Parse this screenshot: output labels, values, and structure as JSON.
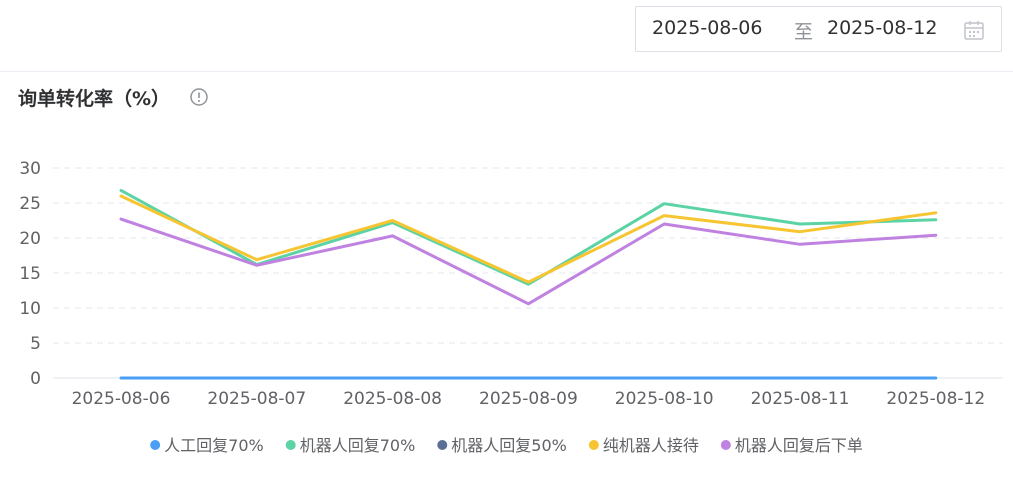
{
  "date_range": {
    "start": "2025-08-06",
    "separator": "至",
    "end": "2025-08-12"
  },
  "chart_data": {
    "type": "line",
    "title": "询单转化率（%）",
    "categories": [
      "2025-08-06",
      "2025-08-07",
      "2025-08-08",
      "2025-08-09",
      "2025-08-10",
      "2025-08-11",
      "2025-08-12"
    ],
    "ylim": [
      0,
      30
    ],
    "yticks": [
      0,
      5,
      10,
      15,
      20,
      25,
      30
    ],
    "grid": "horizontal-dashed",
    "legend": "bottom",
    "series": [
      {
        "name": "人工回复70%",
        "color": "#4a9ff5",
        "values": [
          0,
          0,
          0,
          0,
          0,
          0,
          0
        ]
      },
      {
        "name": "机器人回复70%",
        "color": "#5cd3a5",
        "values": [
          26.8,
          16.2,
          22.2,
          13.4,
          24.9,
          22.0,
          22.6
        ]
      },
      {
        "name": "机器人回复50%",
        "color": "#5b6e96",
        "values": [
          null,
          null,
          null,
          null,
          null,
          null,
          null
        ]
      },
      {
        "name": "纯机器人接待",
        "color": "#f7c531",
        "values": [
          26.0,
          16.9,
          22.5,
          13.7,
          23.2,
          20.9,
          23.6
        ]
      },
      {
        "name": "机器人回复后下单",
        "color": "#c082e0",
        "values": [
          22.7,
          16.1,
          20.3,
          10.6,
          22.0,
          19.1,
          20.4
        ]
      }
    ]
  }
}
